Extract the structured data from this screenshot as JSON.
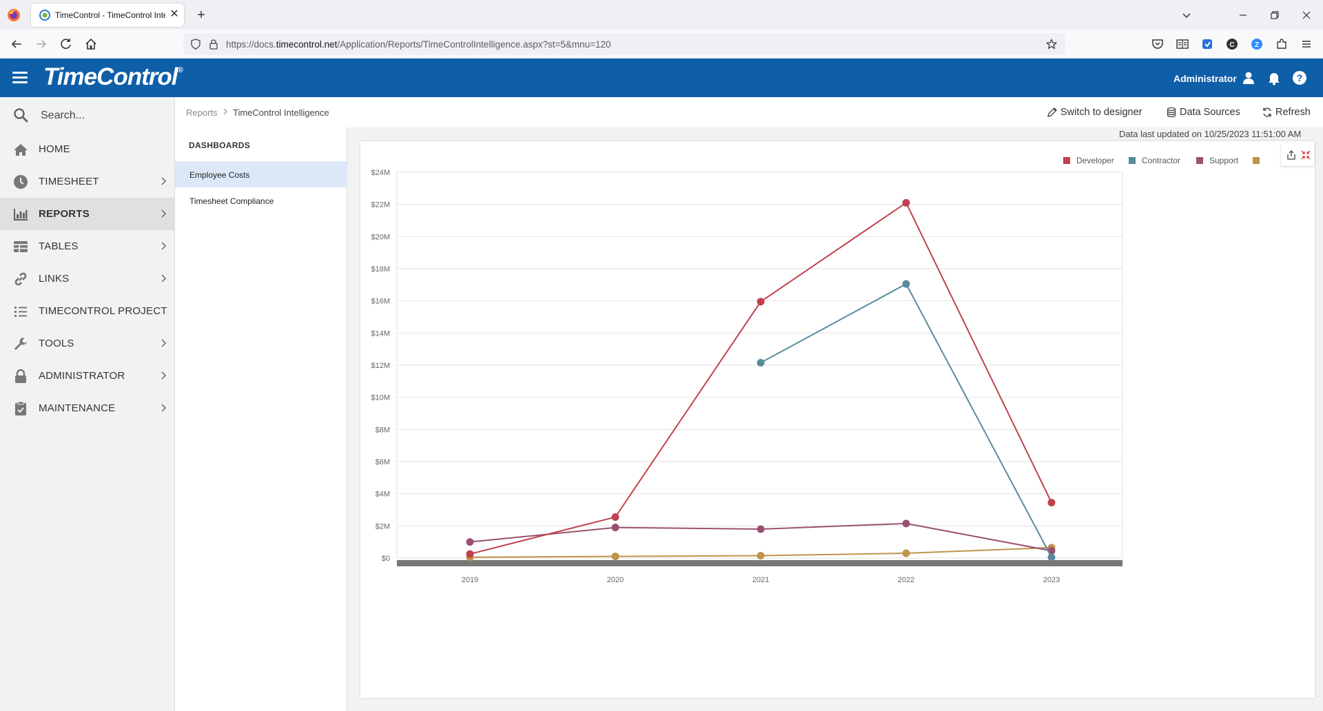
{
  "browser": {
    "tab_title": "TimeControl - TimeControl Intelligence",
    "url_prefix": "https://docs.",
    "url_host": "timecontrol.net",
    "url_path": "/Application/Reports/TimeControlIntelligence.aspx?st=5&mnu=120"
  },
  "header": {
    "brand": "TimeControl",
    "brand_mark": "®",
    "user": "Administrator"
  },
  "sidebar": {
    "search_placeholder": "Search...",
    "items": [
      {
        "label": "HOME",
        "icon": "home-icon",
        "has_children": false
      },
      {
        "label": "TIMESHEET",
        "icon": "clock-icon",
        "has_children": true
      },
      {
        "label": "REPORTS",
        "icon": "bar-chart-icon",
        "has_children": true,
        "active": true
      },
      {
        "label": "TABLES",
        "icon": "table-icon",
        "has_children": true
      },
      {
        "label": "LINKS",
        "icon": "link-icon",
        "has_children": true
      },
      {
        "label": "TIMECONTROL PROJECT",
        "icon": "task-list-icon",
        "has_children": false
      },
      {
        "label": "TOOLS",
        "icon": "wrench-icon",
        "has_children": true
      },
      {
        "label": "ADMINISTRATOR",
        "icon": "lock-icon",
        "has_children": true
      },
      {
        "label": "MAINTENANCE",
        "icon": "clipboard-check-icon",
        "has_children": true
      }
    ]
  },
  "breadcrumb": {
    "parent": "Reports",
    "current": "TimeControl Intelligence"
  },
  "toolbar": {
    "switch_label": "Switch to designer",
    "datasources_label": "Data Sources",
    "refresh_label": "Refresh"
  },
  "status": {
    "updated": "Data last updated on 10/25/2023 11:51:00 AM"
  },
  "dashboards": {
    "heading": "DASHBOARDS",
    "items": [
      "Employee Costs",
      "Timesheet Compliance"
    ],
    "selected": 0
  },
  "colors": {
    "header_blue": "#0e5ea8",
    "developer": "#c0414e",
    "contractor": "#5a8a9e",
    "support": "#9a5070",
    "other": "#c0924a"
  },
  "chart_data": {
    "type": "line",
    "x": [
      "2019",
      "2020",
      "2021",
      "2022",
      "2023"
    ],
    "ylim": [
      0,
      24000000
    ],
    "yticks": [
      0,
      2000000,
      4000000,
      6000000,
      8000000,
      10000000,
      12000000,
      14000000,
      16000000,
      18000000,
      20000000,
      22000000,
      24000000
    ],
    "ytick_labels": [
      "$0",
      "$2M",
      "$4M",
      "$6M",
      "$8M",
      "$10M",
      "$12M",
      "$14M",
      "$16M",
      "$18M",
      "$20M",
      "$22M",
      "$24M"
    ],
    "grid": true,
    "legend_position": "top-right",
    "series": [
      {
        "name": "Developer",
        "color": "#c0414e",
        "values": [
          250000,
          2550000,
          15950000,
          22100000,
          3450000
        ]
      },
      {
        "name": "Contractor",
        "color": "#5a8a9e",
        "values": [
          null,
          null,
          12150000,
          17050000,
          50000
        ]
      },
      {
        "name": "Support",
        "color": "#9a5070",
        "values": [
          1000000,
          1900000,
          1800000,
          2150000,
          450000
        ]
      },
      {
        "name": "",
        "color": "#c0924a",
        "values": [
          50000,
          100000,
          150000,
          300000,
          650000
        ]
      }
    ]
  }
}
